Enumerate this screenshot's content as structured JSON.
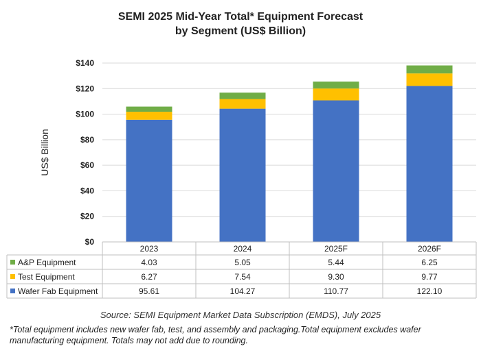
{
  "chart_data": {
    "type": "bar",
    "stacked": true,
    "title_line1": "SEMI 2025 Mid-Year Total* Equipment Forecast",
    "title_line2": "by Segment (US$ Billion)",
    "ylabel": "US$ Billion",
    "xlabel": "",
    "ylim": [
      0,
      140
    ],
    "yticks": [
      "$0",
      "$20",
      "$40",
      "$60",
      "$80",
      "$100",
      "$120",
      "$140"
    ],
    "ytick_values": [
      0,
      20,
      40,
      60,
      80,
      100,
      120,
      140
    ],
    "categories": [
      "2023",
      "2024",
      "2025F",
      "2026F"
    ],
    "grid": true,
    "legend_placement": "data-table",
    "series": [
      {
        "name": "Wafer Fab Equipment",
        "color": "#4472C4",
        "values": [
          95.61,
          104.27,
          110.77,
          122.1
        ],
        "labels": [
          "95.61",
          "104.27",
          "110.77",
          "122.10"
        ]
      },
      {
        "name": "Test Equipment",
        "color": "#FFC000",
        "values": [
          6.27,
          7.54,
          9.3,
          9.77
        ],
        "labels": [
          "6.27",
          "7.54",
          "9.30",
          "9.77"
        ]
      },
      {
        "name": "A&P Equipment",
        "color": "#70AD47",
        "values": [
          4.03,
          5.05,
          5.44,
          6.25
        ],
        "labels": [
          "4.03",
          "5.05",
          "5.44",
          "6.25"
        ]
      }
    ],
    "table_row_order": [
      "A&P Equipment",
      "Test Equipment",
      "Wafer Fab Equipment"
    ]
  },
  "source": "Source: SEMI Equipment Market Data Subscription (EMDS), July 2025",
  "footnote_line1": "*Total equipment includes new wafer fab, test, and assembly and packaging.Total equipment excludes wafer",
  "footnote_line2": "manufacturing equipment. Totals may not add due to rounding."
}
